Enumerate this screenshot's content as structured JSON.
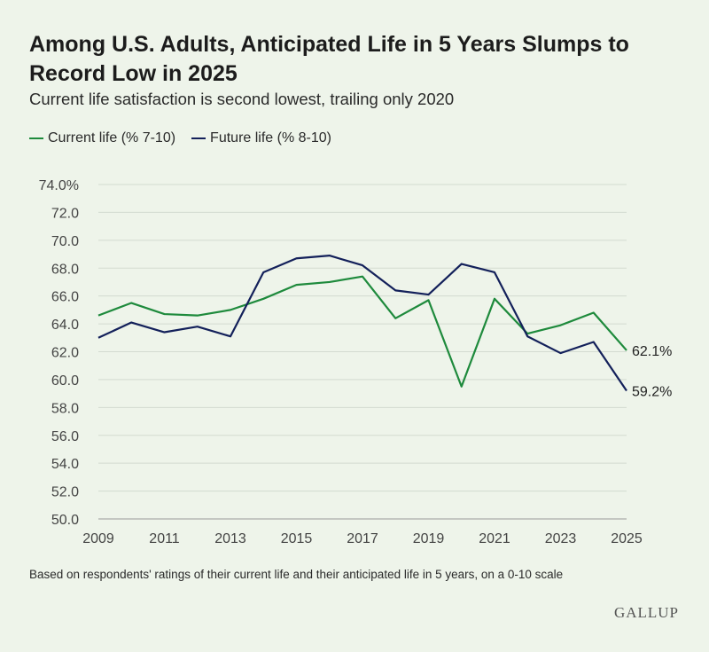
{
  "header": {
    "title": "Among U.S. Adults, Anticipated Life in 5 Years Slumps to Record Low in 2025",
    "subtitle": "Current life satisfaction is second lowest, trailing only 2020"
  },
  "legend": {
    "items": [
      {
        "label": "Current life (% 7-10)",
        "color": "#1e8a3c"
      },
      {
        "label": "Future life (% 8-10)",
        "color": "#13205a"
      }
    ]
  },
  "footnote": "Based on respondents' ratings of their current life and their anticipated life in 5 years, on a 0-10 scale",
  "logo": "GALLUP",
  "chart_data": {
    "type": "line",
    "x": [
      2009,
      2010,
      2011,
      2012,
      2013,
      2014,
      2015,
      2016,
      2017,
      2018,
      2019,
      2020,
      2021,
      2022,
      2023,
      2024,
      2025
    ],
    "series": [
      {
        "name": "Current life (% 7-10)",
        "color": "#1e8a3c",
        "values": [
          64.6,
          65.5,
          64.7,
          64.6,
          65.0,
          65.8,
          66.8,
          67.0,
          67.4,
          64.4,
          65.7,
          59.5,
          65.8,
          63.3,
          63.9,
          64.8,
          62.1
        ],
        "end_label": "62.1%"
      },
      {
        "name": "Future life (% 8-10)",
        "color": "#13205a",
        "values": [
          63.0,
          64.1,
          63.4,
          63.8,
          63.1,
          67.7,
          68.7,
          68.9,
          68.2,
          66.4,
          66.1,
          68.3,
          67.7,
          63.1,
          61.9,
          62.7,
          59.2
        ],
        "end_label": "59.2%"
      }
    ],
    "xticks": [
      "2009",
      "2011",
      "2013",
      "2015",
      "2017",
      "2019",
      "2021",
      "2023",
      "2025"
    ],
    "yticks": [
      "74.0%",
      "72.0",
      "70.0",
      "68.0",
      "66.0",
      "64.0",
      "62.0",
      "60.0",
      "58.0",
      "56.0",
      "54.0",
      "52.0",
      "50.0"
    ],
    "ylim": [
      50,
      74
    ],
    "xlim": [
      2009,
      2025
    ],
    "grid": "horizontal",
    "legend_position": "top-left"
  }
}
